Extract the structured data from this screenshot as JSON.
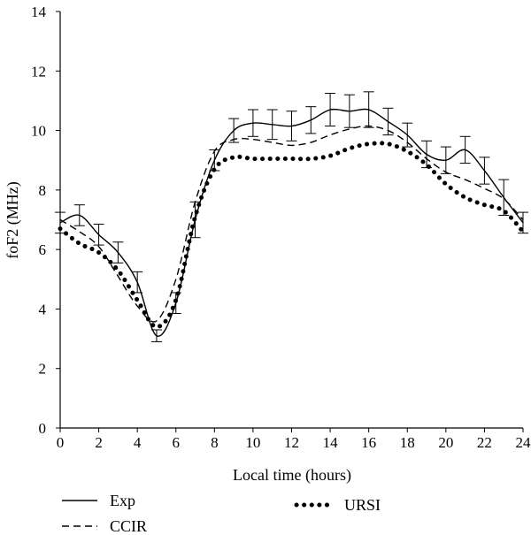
{
  "chart_data": {
    "type": "line",
    "xlabel": "Local time (hours)",
    "ylabel": "foF2 (MHz)",
    "xlim": [
      0,
      24
    ],
    "ylim": [
      0,
      14
    ],
    "x_ticks": [
      0,
      2,
      4,
      6,
      8,
      10,
      12,
      14,
      16,
      18,
      20,
      22,
      24
    ],
    "y_ticks": [
      0,
      2,
      4,
      6,
      8,
      10,
      12,
      14
    ],
    "grid": false,
    "legend_position": "bottom",
    "series": [
      {
        "name": "Exp",
        "style": "solid",
        "x": [
          0,
          1,
          2,
          3,
          4,
          5,
          6,
          7,
          8,
          9,
          10,
          11,
          12,
          13,
          14,
          15,
          16,
          17,
          18,
          19,
          20,
          21,
          22,
          23,
          24
        ],
        "values": [
          6.9,
          7.15,
          6.5,
          5.9,
          4.9,
          3.1,
          4.2,
          7.0,
          9.0,
          10.0,
          10.25,
          10.2,
          10.15,
          10.35,
          10.7,
          10.65,
          10.7,
          10.3,
          9.85,
          9.2,
          9.0,
          9.35,
          8.65,
          7.75,
          6.9
        ],
        "error": [
          0.35,
          0.35,
          0.35,
          0.35,
          0.35,
          0.2,
          0.35,
          0.6,
          0.35,
          0.4,
          0.45,
          0.5,
          0.5,
          0.45,
          0.55,
          0.55,
          0.6,
          0.45,
          0.4,
          0.45,
          0.45,
          0.45,
          0.45,
          0.6,
          0.35
        ]
      },
      {
        "name": "CCIR",
        "style": "dashed",
        "x": [
          0,
          1,
          2,
          3,
          4,
          5,
          6,
          7,
          8,
          9,
          10,
          11,
          12,
          13,
          14,
          15,
          16,
          17,
          18,
          19,
          20,
          21,
          22,
          23,
          24
        ],
        "values": [
          7.0,
          6.6,
          6.1,
          5.1,
          4.1,
          3.6,
          5.0,
          7.6,
          9.3,
          9.7,
          9.7,
          9.6,
          9.5,
          9.6,
          9.85,
          10.05,
          10.15,
          10.0,
          9.6,
          9.05,
          8.6,
          8.35,
          8.05,
          7.7,
          7.0
        ]
      },
      {
        "name": "URSI",
        "style": "dotted",
        "x": [
          0,
          1,
          2,
          3,
          4,
          5,
          6,
          7,
          8,
          9,
          10,
          11,
          12,
          13,
          14,
          15,
          16,
          17,
          18,
          19,
          20,
          21,
          22,
          23,
          24
        ],
        "values": [
          6.7,
          6.2,
          5.9,
          5.3,
          4.3,
          3.4,
          4.3,
          7.1,
          8.7,
          9.1,
          9.05,
          9.05,
          9.05,
          9.05,
          9.15,
          9.4,
          9.55,
          9.55,
          9.3,
          8.85,
          8.2,
          7.75,
          7.5,
          7.3,
          6.6
        ]
      }
    ]
  }
}
